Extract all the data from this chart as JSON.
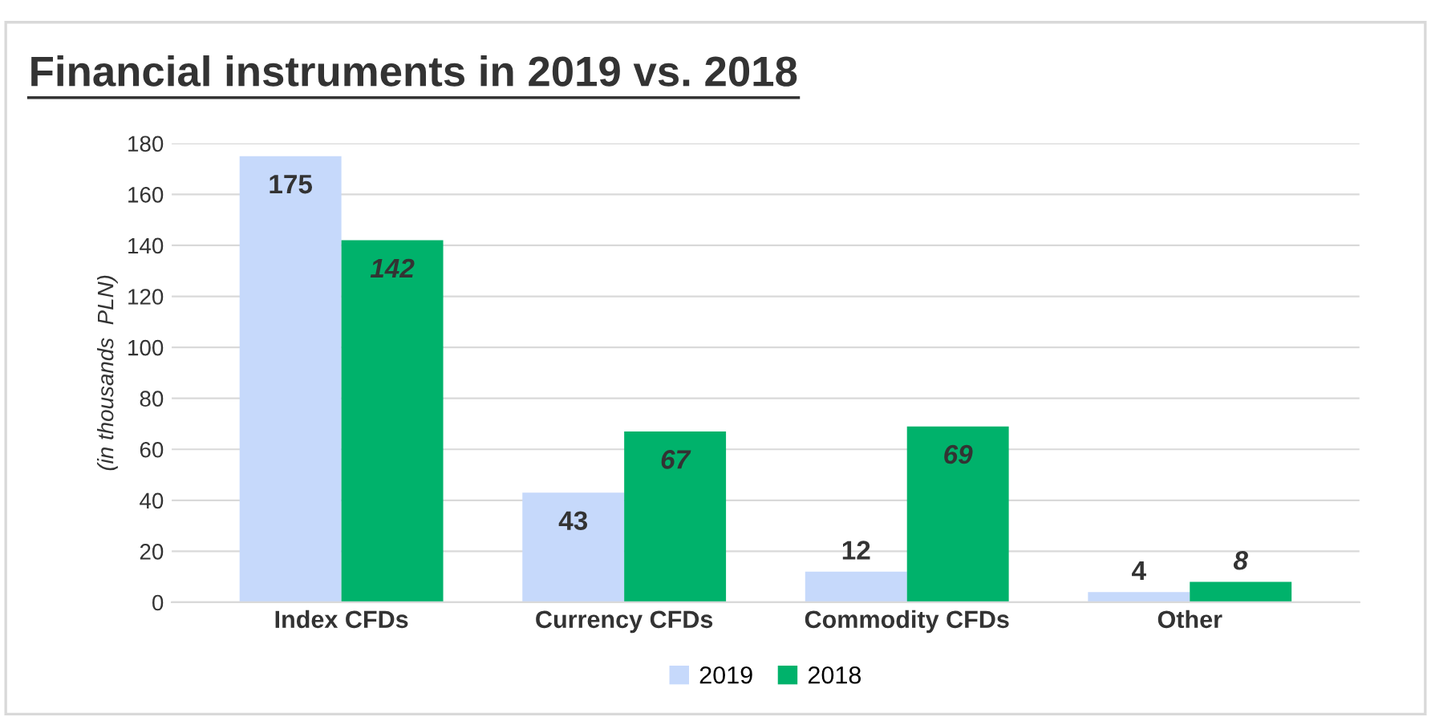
{
  "chart_data": {
    "type": "bar",
    "title": "Financial instruments in 2019 vs. 2018",
    "ylabel": "(in thousands  PLN)",
    "categories": [
      "Index CFDs",
      "Currency CFDs",
      "Commodity CFDs",
      "Other"
    ],
    "series": [
      {
        "name": "2019",
        "color": "#c6d9fb",
        "values": [
          175,
          43,
          12,
          4
        ]
      },
      {
        "name": "2018",
        "color": "#00b26b",
        "values": [
          142,
          67,
          69,
          8
        ]
      }
    ],
    "ylim": [
      0,
      180
    ],
    "yticks": [
      0,
      20,
      40,
      60,
      80,
      100,
      120,
      140,
      160,
      180
    ],
    "grid": "y",
    "legend": "bottom",
    "data_labels": true
  }
}
